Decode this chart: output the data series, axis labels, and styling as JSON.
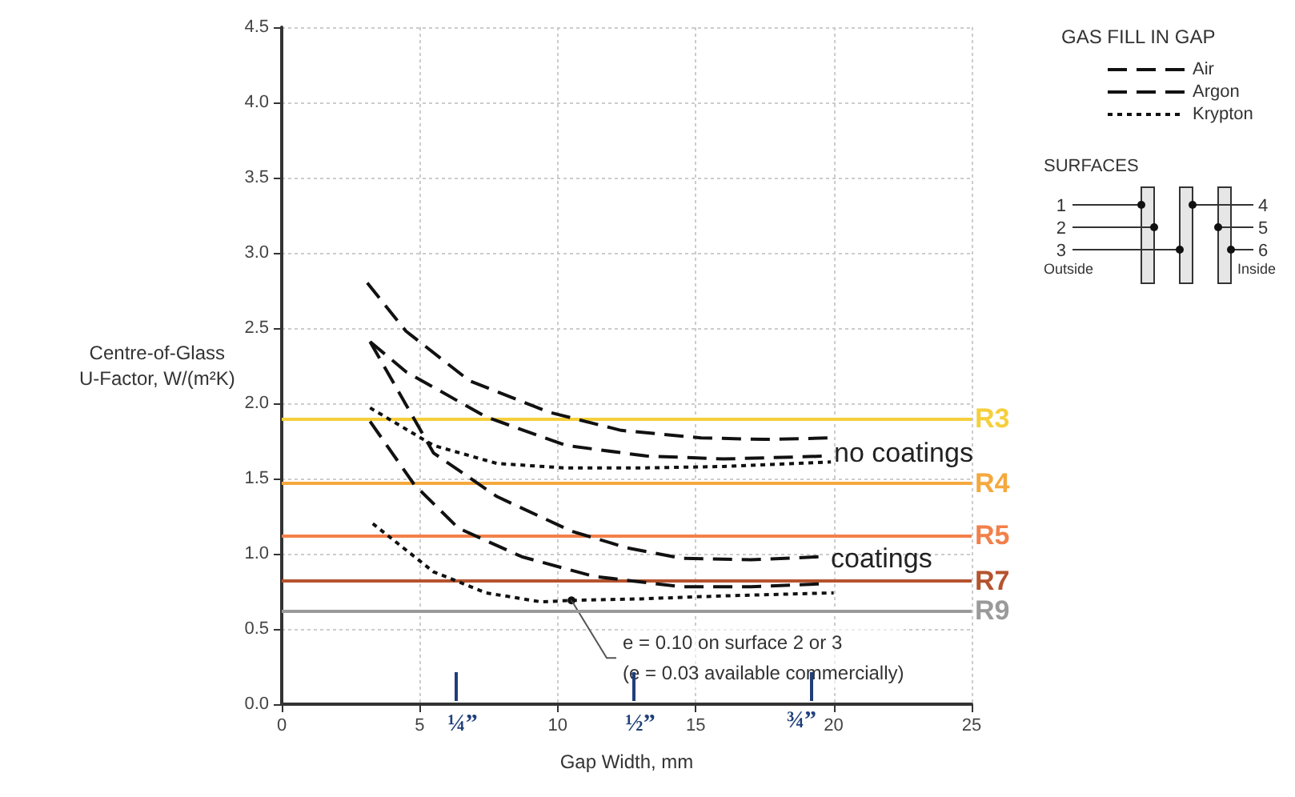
{
  "chart_data": {
    "type": "line",
    "xlabel": "Gap Width, mm",
    "ylabel": "Centre-of-Glass\nU-Factor, W/(m²K)",
    "legend_title": "GAS FILL IN GAP",
    "legend": "top right",
    "grid": true,
    "marker": "none",
    "xlim": [
      0,
      25
    ],
    "ylim": [
      0,
      4.5
    ],
    "xticks": [
      0,
      5,
      10,
      15,
      20,
      25
    ],
    "yticks": [
      {
        "value": 0,
        "label": "0.0"
      },
      0.5,
      {
        "value": 1,
        "label": "1.0"
      },
      1.5,
      {
        "value": 2,
        "label": "2.0"
      },
      2.5,
      {
        "value": 3,
        "label": "3.0"
      },
      3.5,
      {
        "value": 4,
        "label": "4.0"
      },
      4.5
    ],
    "series": [
      {
        "name": "Air",
        "color": "#111111",
        "line_style": "dashed",
        "x": [
          3.1,
          4.5,
          6.8,
          9.7,
          12.3,
          15.2,
          17.5,
          19.9
        ],
        "values": [
          2.8,
          2.48,
          2.15,
          1.94,
          1.82,
          1.77,
          1.76,
          1.77
        ]
      },
      {
        "name": "Argon",
        "color": "#111111",
        "line_style": "dashed",
        "x": [
          3.2,
          4.5,
          7.4,
          10.3,
          13.2,
          16,
          19.9
        ],
        "values": [
          2.41,
          2.21,
          1.91,
          1.72,
          1.65,
          1.63,
          1.65
        ]
      },
      {
        "name": "Krypton",
        "color": "#111111",
        "line_style": "dotted",
        "x": [
          3.2,
          5.5,
          7.8,
          10.3,
          13,
          16,
          19.9
        ],
        "values": [
          1.97,
          1.72,
          1.6,
          1.57,
          1.57,
          1.58,
          1.61
        ]
      },
      {
        "color": "#111111",
        "line_style": "dashed",
        "x": [
          3.2,
          5.5,
          7.8,
          10.5,
          12.5,
          14.5,
          17,
          19.5
        ],
        "values": [
          2.41,
          1.67,
          1.38,
          1.15,
          1.04,
          0.97,
          0.96,
          0.98
        ]
      },
      {
        "color": "#111111",
        "line_style": "dashed",
        "x": [
          3.2,
          4.8,
          6.4,
          8.7,
          11.3,
          14.5,
          17,
          19.5
        ],
        "values": [
          1.88,
          1.46,
          1.17,
          0.98,
          0.85,
          0.78,
          0.78,
          0.8
        ]
      },
      {
        "color": "#111111",
        "line_style": "dotted",
        "x": [
          3.3,
          5.5,
          7.4,
          9.4,
          10.5,
          13,
          16,
          20
        ],
        "values": [
          1.2,
          0.88,
          0.74,
          0.68,
          0.69,
          0.7,
          0.72,
          0.74
        ]
      }
    ],
    "ref_lines": [
      {
        "axis": "y",
        "value": 1.9,
        "label": "R3",
        "color": "#f5cf3c"
      },
      {
        "axis": "y",
        "value": 1.47,
        "label": "R4",
        "color": "#f5a83c"
      },
      {
        "axis": "y",
        "value": 1.12,
        "label": "R5",
        "color": "#f2804a"
      },
      {
        "axis": "y",
        "value": 0.82,
        "label": "R7",
        "color": "#b5532e"
      },
      {
        "axis": "y",
        "value": 0.62,
        "label": "R9",
        "color": "#9a9a9a"
      }
    ],
    "annotations": [
      "no coatings",
      "coatings",
      {
        "text": "e = 0.10 on surface 2 or 3\n(e = 0.03 available commercially)",
        "x": 10.5,
        "y": 0.69
      },
      "¼”",
      "½”",
      "¾”",
      "SURFACES",
      "1",
      "2",
      "3",
      "4",
      "5",
      "6",
      "Outside",
      "Inside"
    ]
  }
}
